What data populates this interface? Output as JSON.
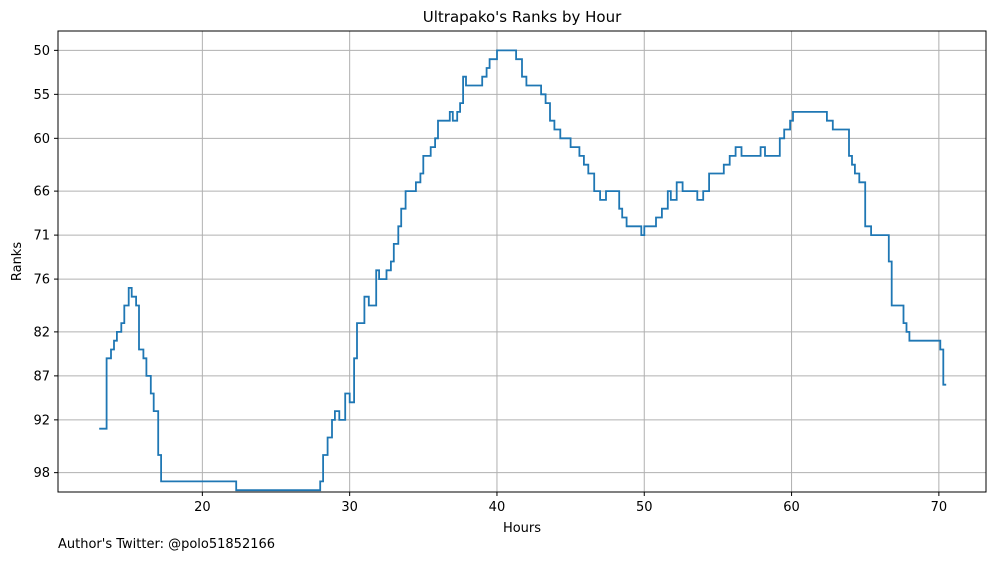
{
  "footer": {
    "credit": "Author's Twitter: @polo51852166"
  },
  "chart_data": {
    "type": "line",
    "step": true,
    "title": "Ultrapako's Ranks by Hour",
    "xlabel": "Hours",
    "ylabel": "Ranks",
    "xlim": [
      10.2,
      73.2
    ],
    "ylim": [
      100.2,
      47.8
    ],
    "xticks": [
      20,
      30,
      40,
      50,
      60,
      70
    ],
    "yticks": [
      50,
      55,
      60,
      66,
      71,
      76,
      82,
      87,
      92,
      98
    ],
    "grid": true,
    "line_color": "#1f77b4",
    "series": [
      {
        "x": [
          13.0,
          13.5,
          13.8,
          14.0,
          14.2,
          14.5,
          14.7,
          15.0,
          15.2,
          15.5,
          15.7,
          16.0,
          16.2,
          16.5,
          16.7,
          17.0,
          17.2,
          22.3,
          28.0,
          28.2,
          28.5,
          28.8,
          29.0,
          29.3,
          29.7,
          30.0,
          30.3,
          30.5,
          31.0,
          31.3,
          31.8,
          32.0,
          32.5,
          32.8,
          33.0,
          33.3,
          33.5,
          33.8,
          34.5,
          34.8,
          35.0,
          35.5,
          35.8,
          36.0,
          36.8,
          37.0,
          37.3,
          37.5,
          37.7,
          37.9,
          38.1,
          39.0,
          39.3,
          39.5,
          40.0,
          41.3,
          41.7,
          42.0,
          43.0,
          43.3,
          43.6,
          43.9,
          44.0,
          44.3,
          45.0,
          45.6,
          45.9,
          46.2,
          46.6,
          47.0,
          47.4,
          47.6,
          48.3,
          48.5,
          48.8,
          49.0,
          49.8,
          50.0,
          50.8,
          51.2,
          51.6,
          51.8,
          52.2,
          52.6,
          53.6,
          54.0,
          54.4,
          54.6,
          55.4,
          55.8,
          56.2,
          56.6,
          57.0,
          57.9,
          58.2,
          59.2,
          59.5,
          59.9,
          60.1,
          62.0,
          62.4,
          62.8,
          63.7,
          63.9,
          64.1,
          64.3,
          64.6,
          65.0,
          65.4,
          66.6,
          66.8,
          67.6,
          67.8,
          68.0,
          69.9,
          70.1,
          70.3,
          70.5
        ],
        "y": [
          93,
          85,
          84,
          83,
          82,
          81,
          79,
          77,
          78,
          79,
          84,
          85,
          87,
          89,
          91,
          96,
          99,
          100,
          99,
          96,
          94,
          92,
          91,
          92,
          89,
          90,
          85,
          81,
          78,
          79,
          75,
          76,
          75,
          74,
          72,
          70,
          68,
          66,
          65,
          64,
          62,
          61,
          60,
          58,
          57,
          58,
          57,
          56,
          53,
          54,
          54,
          53,
          52,
          51,
          50,
          51,
          53,
          54,
          55,
          56,
          58,
          59,
          59,
          60,
          61,
          62,
          63,
          64,
          66,
          67,
          66,
          66,
          68,
          69,
          70,
          70,
          71,
          70,
          69,
          68,
          66,
          67,
          65,
          66,
          67,
          66,
          64,
          64,
          63,
          62,
          61,
          62,
          62,
          61,
          62,
          60,
          59,
          58,
          57,
          57,
          58,
          59,
          59,
          62,
          63,
          64,
          65,
          70,
          71,
          74,
          79,
          81,
          82,
          83,
          83,
          84,
          88,
          88
        ]
      }
    ]
  }
}
